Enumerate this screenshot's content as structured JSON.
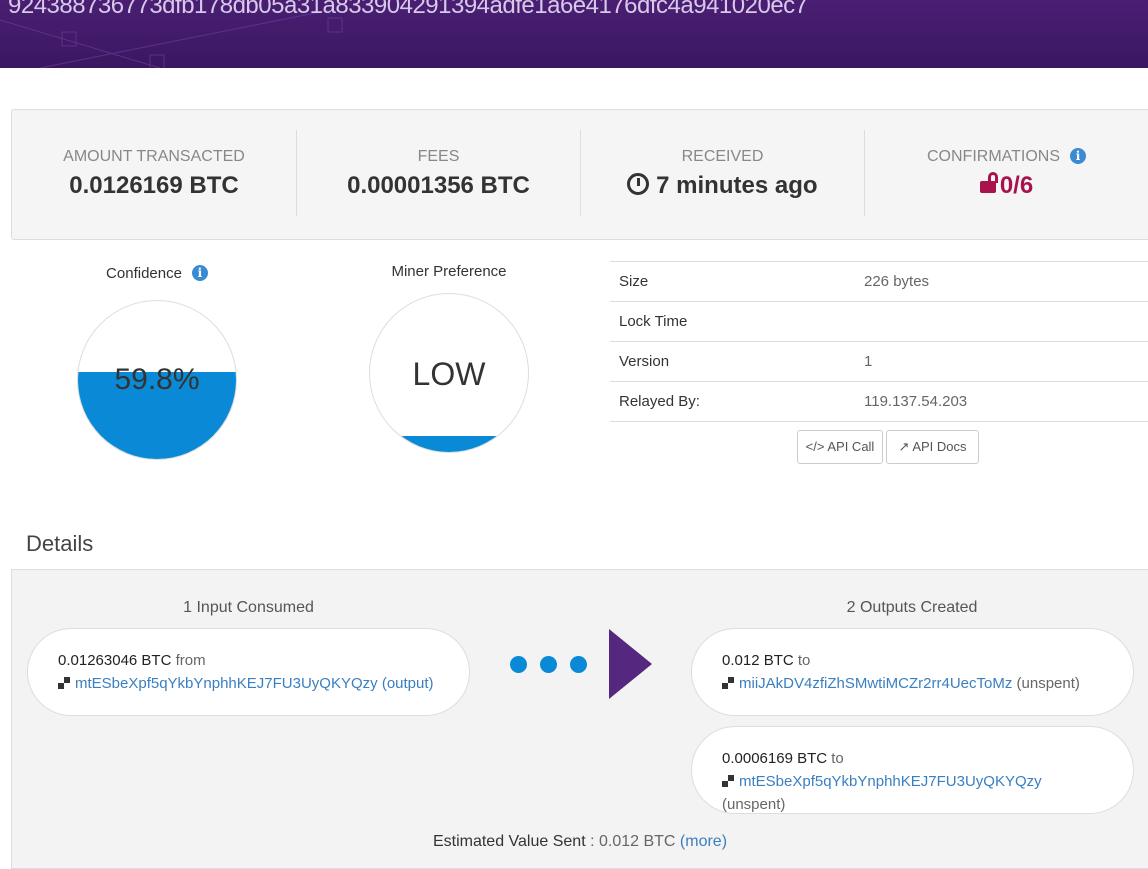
{
  "header": {
    "tx_hash": "924388736773dfb178db05a31a833904291394adfe1a6e4176dfc4a941020ec7"
  },
  "stats": [
    {
      "label": "AMOUNT TRANSACTED",
      "value": "0.0126169 BTC"
    },
    {
      "label": "FEES",
      "value": "0.00001356 BTC"
    },
    {
      "label": "RECEIVED",
      "value": "7 minutes ago",
      "icon": "clock-icon"
    },
    {
      "label": "CONFIRMATIONS",
      "value": "0/6",
      "icon": "unlock-icon",
      "color": "#a8124d"
    }
  ],
  "confidence": {
    "title": "Confidence",
    "value": "59.8%",
    "fill_percent": 59.8,
    "color": "#0a8ad6"
  },
  "miner_preference": {
    "title": "Miner Preference",
    "value": "LOW",
    "fill_percent": 10
  },
  "info_table": [
    {
      "key": "Size",
      "value": "226 bytes"
    },
    {
      "key": "Lock Time",
      "value": ""
    },
    {
      "key": "Version",
      "value": "1"
    },
    {
      "key": "Relayed By:",
      "value": "119.137.54.203"
    }
  ],
  "buttons": {
    "api_call": "</> API Call",
    "api_docs": "API Docs"
  },
  "details": {
    "heading": "Details",
    "inputs_title": "1 Input Consumed",
    "outputs_title": "2 Outputs Created",
    "inputs": [
      {
        "amount": "0.01263046 BTC",
        "dir": "from",
        "address": "mtESbeXpf5qYkbYnphhKEJ7FU3UyQKYQzy",
        "status": "(output)"
      }
    ],
    "outputs": [
      {
        "amount": "0.012 BTC",
        "dir": "to",
        "address": "miiJAkDV4zfiZhSMwtiMCZr2rr4UecToMz",
        "status": "(unspent)"
      },
      {
        "amount": "0.0006169 BTC",
        "dir": "to",
        "address": "mtESbeXpf5qYkbYnphhKEJ7FU3UyQKYQzy",
        "status": "(unspent)"
      }
    ],
    "estimated_label": "Estimated Value Sent",
    "estimated_value": ": 0.012 BTC",
    "more": "(more)"
  }
}
